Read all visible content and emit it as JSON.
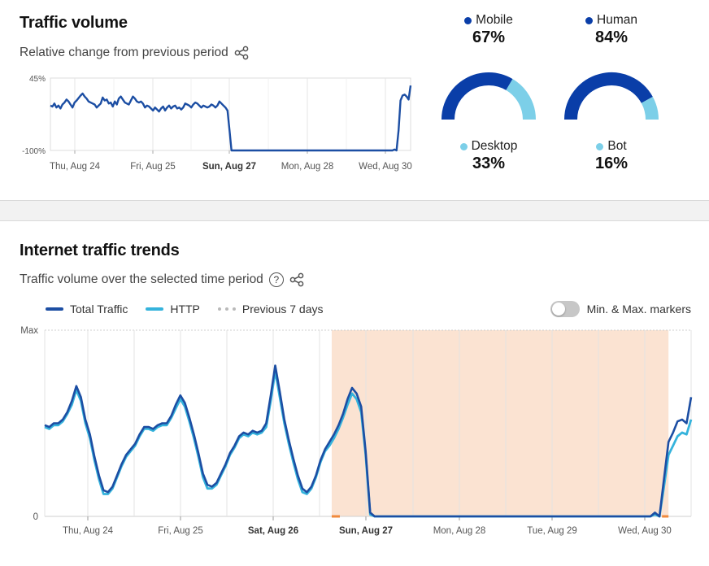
{
  "traffic_volume": {
    "title": "Traffic volume",
    "subtitle": "Relative change from previous period",
    "share_icon": "share-icon",
    "chart_data": {
      "type": "line",
      "ylim": [
        -100,
        45
      ],
      "ytick_labels": [
        "45%",
        "-100%"
      ],
      "xtick_labels": [
        "Thu, Aug 24",
        "Fri, Aug 25",
        "Sun, Aug 27",
        "Mon, Aug 28",
        "Wed, Aug 30"
      ],
      "bold_tick": "Sun, Aug 27",
      "series": [
        {
          "color": "#1c4ea3",
          "values": [
            -10,
            -12,
            -6,
            -14,
            -10,
            -16,
            -8,
            -4,
            2,
            -2,
            -8,
            -14,
            -4,
            0,
            5,
            10,
            14,
            8,
            4,
            -2,
            -4,
            -6,
            -8,
            -14,
            -10,
            -6,
            6,
            0,
            2,
            -6,
            -4,
            -12,
            -2,
            -8,
            4,
            8,
            2,
            -4,
            -6,
            -8,
            0,
            8,
            4,
            -2,
            -4,
            -2,
            -6,
            -14,
            -10,
            -12,
            -16,
            -20,
            -14,
            -18,
            -22,
            -16,
            -12,
            -20,
            -14,
            -10,
            -16,
            -12,
            -10,
            -16,
            -14,
            -18,
            -14,
            -6,
            -8,
            -10,
            -14,
            -8,
            -4,
            -6,
            -10,
            -14,
            -10,
            -12,
            -14,
            -12,
            -8,
            -10,
            -14,
            -10,
            -2,
            -6,
            -10,
            -14,
            -20,
            -60,
            -100,
            -100,
            -100,
            -100,
            -100,
            -100,
            -100,
            -100,
            -100,
            -100,
            -100,
            -100,
            -100,
            -100,
            -100,
            -100,
            -100,
            -100,
            -100,
            -100,
            -100,
            -100,
            -100,
            -100,
            -100,
            -100,
            -100,
            -100,
            -100,
            -100,
            -100,
            -100,
            -100,
            -100,
            -100,
            -100,
            -100,
            -100,
            -100,
            -100,
            -100,
            -100,
            -100,
            -100,
            -100,
            -100,
            -100,
            -100,
            -100,
            -100,
            -100,
            -100,
            -100,
            -100,
            -100,
            -100,
            -100,
            -100,
            -100,
            -100,
            -100,
            -100,
            -100,
            -100,
            -100,
            -100,
            -100,
            -100,
            -100,
            -100,
            -100,
            -100,
            -100,
            -100,
            -100,
            -100,
            -100,
            -100,
            -100,
            -100,
            -100,
            -98,
            -100,
            -60,
            0,
            10,
            12,
            8,
            2,
            30
          ]
        }
      ]
    }
  },
  "device_split": {
    "mobile": {
      "label": "Mobile",
      "value_text": "67%",
      "value": 67,
      "color": "#0a3ea8"
    },
    "desktop": {
      "label": "Desktop",
      "value_text": "33%",
      "value": 33,
      "color": "#7ccfe8"
    }
  },
  "human_split": {
    "human": {
      "label": "Human",
      "value_text": "84%",
      "value": 84,
      "color": "#0a3ea8"
    },
    "bot": {
      "label": "Bot",
      "value_text": "16%",
      "value": 16,
      "color": "#7ccfe8"
    }
  },
  "internet_trends": {
    "title": "Internet traffic trends",
    "subtitle": "Traffic volume over the selected time period",
    "help_icon": "question-circle-icon",
    "share_icon": "share-icon",
    "legend": [
      {
        "label": "Total Traffic",
        "color": "#1c4ea3",
        "style": "solid"
      },
      {
        "label": "HTTP",
        "color": "#35b3dc",
        "style": "solid"
      },
      {
        "label": "Previous 7 days",
        "color": "#b9b9b9",
        "style": "dotted"
      }
    ],
    "toggle": {
      "label": "Min. & Max. markers",
      "on": false
    },
    "chart_data": {
      "type": "line",
      "ytick_labels": [
        "Max",
        "0"
      ],
      "xtick_labels": [
        "Thu, Aug 24",
        "Fri, Aug 25",
        "Sat, Aug 26",
        "Sun, Aug 27",
        "Mon, Aug 28",
        "Tue, Aug 29",
        "Wed, Aug 30"
      ],
      "bold_ticks": [
        "Sat, Aug 26",
        "Sun, Aug 27"
      ],
      "highlight_region": {
        "color": "#fbe3d2",
        "start_fraction": 0.444,
        "end_fraction": 0.965
      },
      "series": [
        {
          "name": "Total Traffic",
          "color": "#1c4ea3",
          "values": [
            0.49,
            0.48,
            0.5,
            0.5,
            0.52,
            0.56,
            0.62,
            0.7,
            0.64,
            0.52,
            0.44,
            0.32,
            0.22,
            0.14,
            0.13,
            0.16,
            0.22,
            0.28,
            0.33,
            0.36,
            0.39,
            0.44,
            0.48,
            0.48,
            0.47,
            0.49,
            0.5,
            0.5,
            0.54,
            0.6,
            0.65,
            0.61,
            0.53,
            0.44,
            0.34,
            0.23,
            0.17,
            0.16,
            0.18,
            0.23,
            0.28,
            0.34,
            0.38,
            0.43,
            0.45,
            0.44,
            0.46,
            0.45,
            0.46,
            0.5,
            0.65,
            0.81,
            0.67,
            0.52,
            0.41,
            0.31,
            0.22,
            0.15,
            0.13,
            0.16,
            0.22,
            0.3,
            0.36,
            0.4,
            0.44,
            0.49,
            0.55,
            0.63,
            0.69,
            0.66,
            0.59,
            0.35,
            0.02,
            0.0,
            0.0,
            0.0,
            0.0,
            0.0,
            0.0,
            0.0,
            0.0,
            0.0,
            0.0,
            0.0,
            0.0,
            0.0,
            0.0,
            0.0,
            0.0,
            0.0,
            0.0,
            0.0,
            0.0,
            0.0,
            0.0,
            0.0,
            0.0,
            0.0,
            0.0,
            0.0,
            0.0,
            0.0,
            0.0,
            0.0,
            0.0,
            0.0,
            0.0,
            0.0,
            0.0,
            0.0,
            0.0,
            0.0,
            0.0,
            0.0,
            0.0,
            0.0,
            0.0,
            0.0,
            0.0,
            0.0,
            0.0,
            0.0,
            0.0,
            0.0,
            0.0,
            0.0,
            0.0,
            0.0,
            0.0,
            0.0,
            0.0,
            0.0,
            0.0,
            0.0,
            0.0,
            0.02,
            0.0,
            0.2,
            0.4,
            0.45,
            0.51,
            0.52,
            0.5,
            0.64
          ]
        },
        {
          "name": "HTTP",
          "color": "#35b3dc",
          "values": [
            0.48,
            0.47,
            0.49,
            0.49,
            0.51,
            0.55,
            0.6,
            0.68,
            0.62,
            0.5,
            0.42,
            0.3,
            0.2,
            0.12,
            0.12,
            0.15,
            0.21,
            0.27,
            0.32,
            0.35,
            0.38,
            0.43,
            0.47,
            0.47,
            0.46,
            0.48,
            0.49,
            0.49,
            0.53,
            0.58,
            0.63,
            0.59,
            0.51,
            0.42,
            0.32,
            0.21,
            0.15,
            0.15,
            0.17,
            0.22,
            0.27,
            0.33,
            0.37,
            0.42,
            0.44,
            0.43,
            0.45,
            0.44,
            0.45,
            0.48,
            0.62,
            0.78,
            0.64,
            0.5,
            0.39,
            0.29,
            0.2,
            0.13,
            0.12,
            0.15,
            0.21,
            0.29,
            0.35,
            0.38,
            0.42,
            0.47,
            0.53,
            0.6,
            0.66,
            0.63,
            0.56,
            0.33,
            0.01,
            0.0,
            0.0,
            0.0,
            0.0,
            0.0,
            0.0,
            0.0,
            0.0,
            0.0,
            0.0,
            0.0,
            0.0,
            0.0,
            0.0,
            0.0,
            0.0,
            0.0,
            0.0,
            0.0,
            0.0,
            0.0,
            0.0,
            0.0,
            0.0,
            0.0,
            0.0,
            0.0,
            0.0,
            0.0,
            0.0,
            0.0,
            0.0,
            0.0,
            0.0,
            0.0,
            0.0,
            0.0,
            0.0,
            0.0,
            0.0,
            0.0,
            0.0,
            0.0,
            0.0,
            0.0,
            0.0,
            0.0,
            0.0,
            0.0,
            0.0,
            0.0,
            0.0,
            0.0,
            0.0,
            0.0,
            0.0,
            0.0,
            0.0,
            0.0,
            0.0,
            0.0,
            0.0,
            0.01,
            0.0,
            0.16,
            0.33,
            0.38,
            0.43,
            0.45,
            0.44,
            0.52
          ]
        }
      ]
    }
  }
}
